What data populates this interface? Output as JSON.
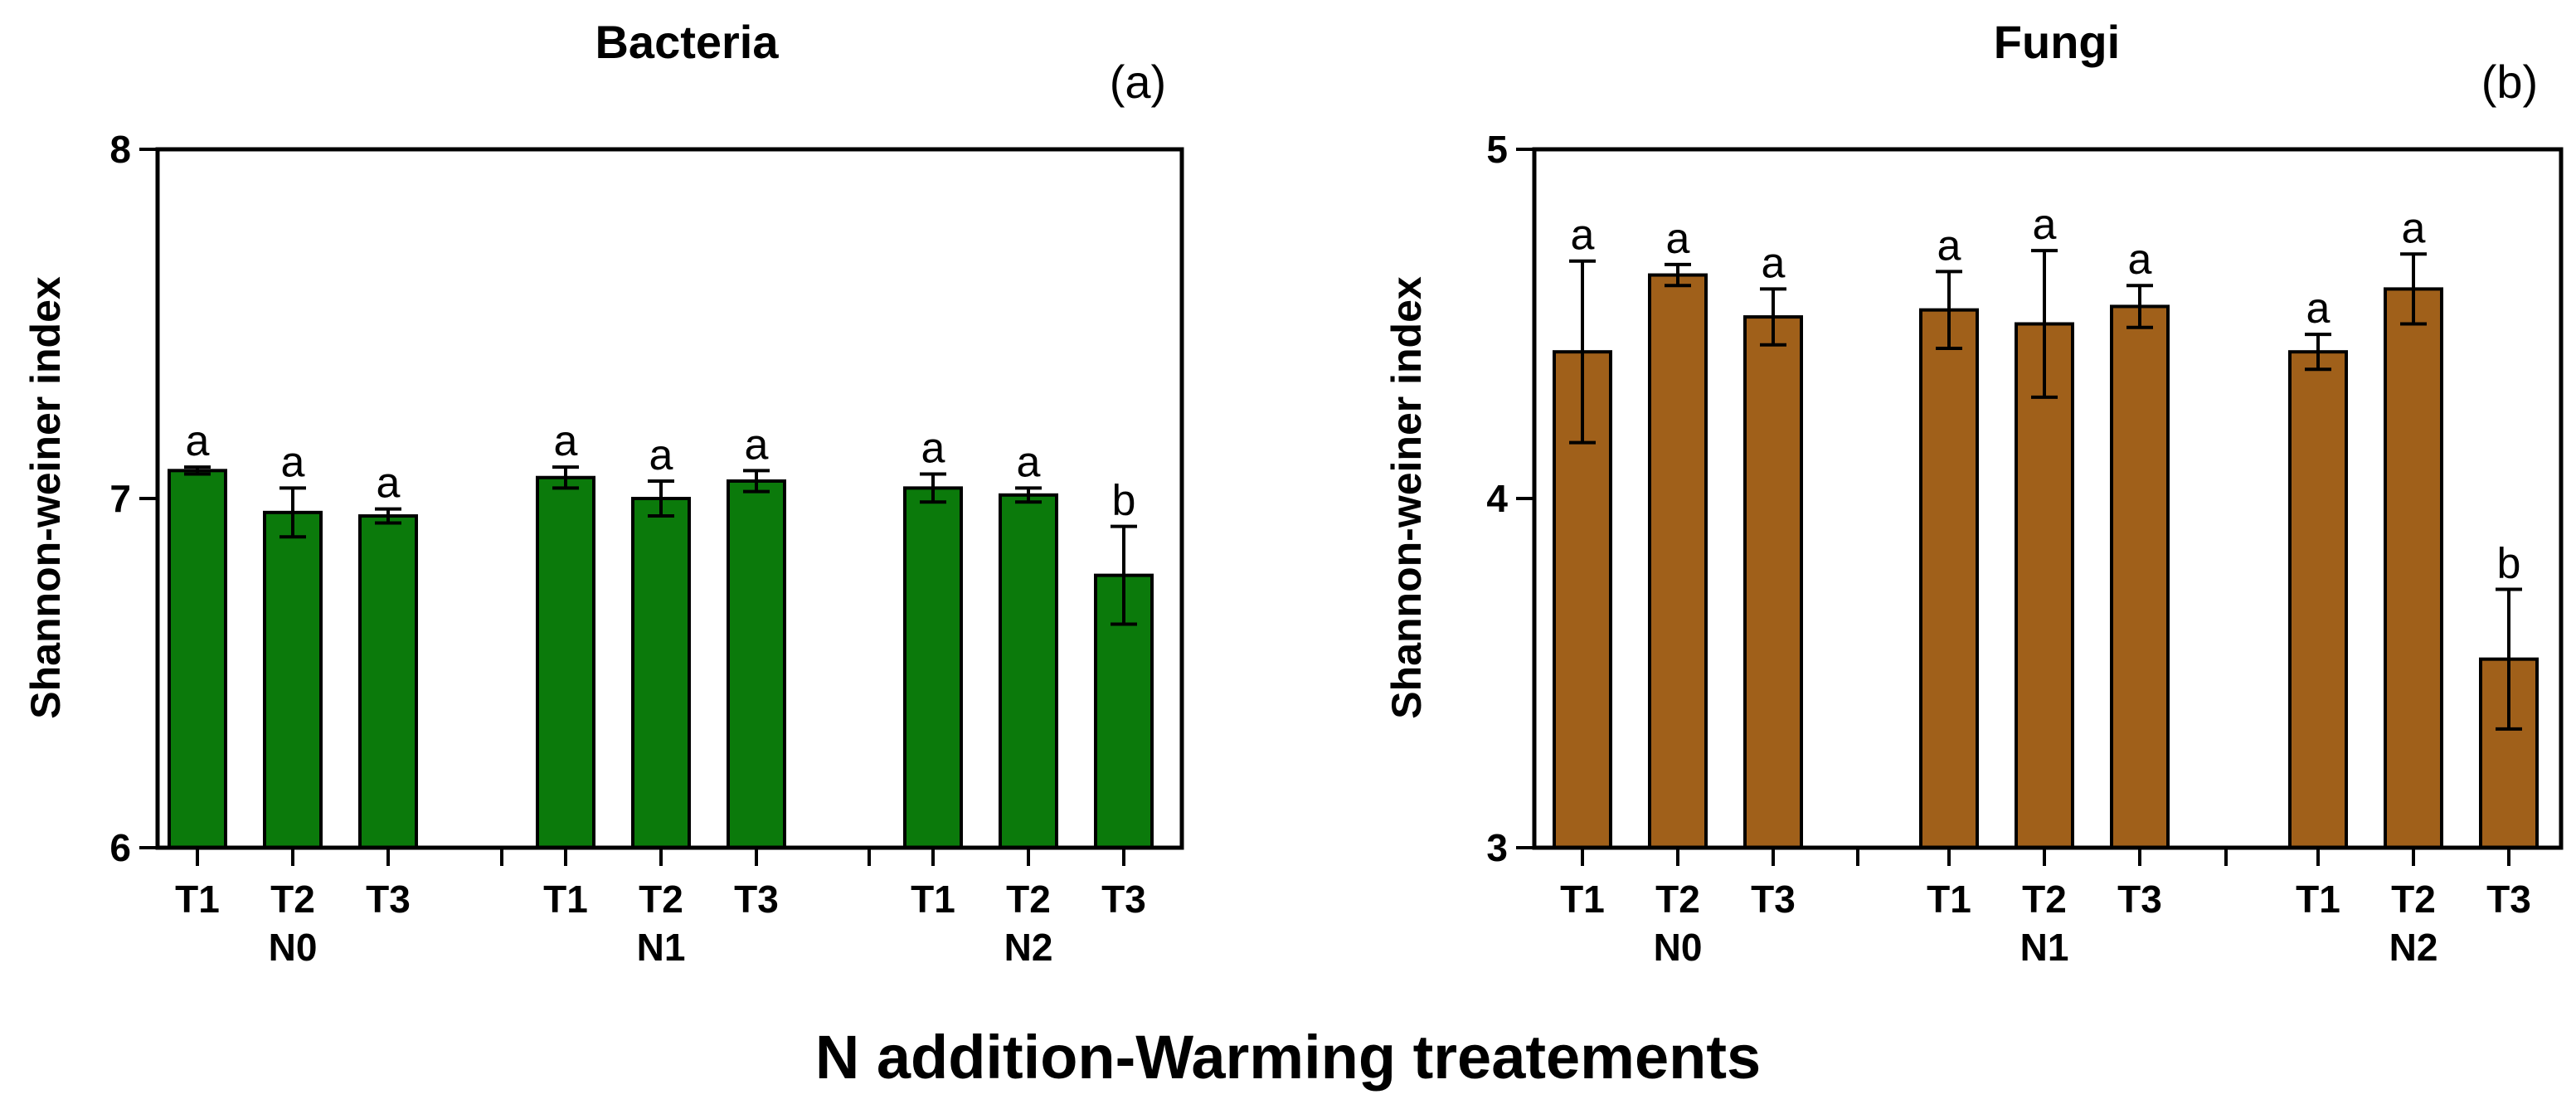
{
  "figure": {
    "xlabel": "N addition-Warming treatements"
  },
  "chart_data": [
    {
      "type": "bar",
      "title": "Bacteria",
      "panel_label": "(a)",
      "ylabel": "Shannon-weiner index",
      "ylim": [
        6,
        8
      ],
      "yticks": [
        6,
        7,
        8
      ],
      "bar_color": "#0b7a0b",
      "groups": [
        "N0",
        "N1",
        "N2"
      ],
      "categories": [
        "T1",
        "T2",
        "T3"
      ],
      "values": [
        [
          7.08,
          6.96,
          6.95
        ],
        [
          7.06,
          7.0,
          7.05
        ],
        [
          7.03,
          7.01,
          6.78
        ]
      ],
      "errors": [
        [
          0.01,
          0.07,
          0.02
        ],
        [
          0.03,
          0.05,
          0.03
        ],
        [
          0.04,
          0.02,
          0.14
        ]
      ],
      "letters": [
        [
          "a",
          "a",
          "a"
        ],
        [
          "a",
          "a",
          "a"
        ],
        [
          "a",
          "a",
          "b"
        ]
      ]
    },
    {
      "type": "bar",
      "title": "Fungi",
      "panel_label": "(b)",
      "ylabel": "Shannon-weiner index",
      "ylim": [
        3,
        5
      ],
      "yticks": [
        3,
        4,
        5
      ],
      "bar_color": "#a0601a",
      "groups": [
        "N0",
        "N1",
        "N2"
      ],
      "categories": [
        "T1",
        "T2",
        "T3"
      ],
      "values": [
        [
          4.42,
          4.64,
          4.52
        ],
        [
          4.54,
          4.5,
          4.55
        ],
        [
          4.42,
          4.6,
          3.54
        ]
      ],
      "errors": [
        [
          0.26,
          0.03,
          0.08
        ],
        [
          0.11,
          0.21,
          0.06
        ],
        [
          0.05,
          0.1,
          0.2
        ]
      ],
      "letters": [
        [
          "a",
          "a",
          "a"
        ],
        [
          "a",
          "a",
          "a"
        ],
        [
          "a",
          "a",
          "b"
        ]
      ]
    }
  ]
}
